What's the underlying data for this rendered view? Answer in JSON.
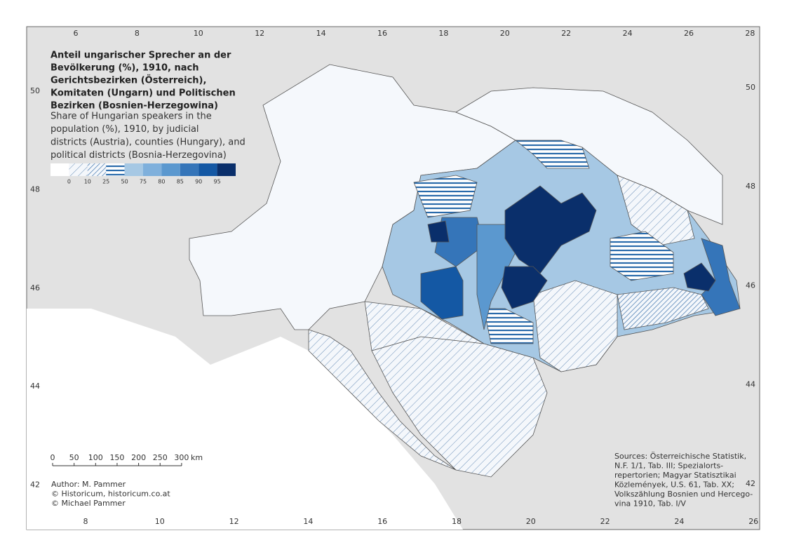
{
  "title_lines": [
    "Anteil ungarischer Sprecher an der",
    "Bevölkerung (%), 1910, nach",
    "Gerichtsbezirken (Österreich),",
    "Komitaten (Ungarn) und Politischen",
    "Bezirken (Bosnien-Herzegowina)"
  ],
  "subtitle_lines": [
    "Share of Hungarian speakers in the",
    "population (%), 1910, by judicial",
    "districts (Austria), counties (Hungary), and",
    "political districts (Bosnia-Herzegovina)"
  ],
  "legend": {
    "breaks": [
      0,
      10,
      25,
      50,
      75,
      80,
      85,
      90,
      95
    ]
  },
  "graticule": {
    "top": [
      6,
      8,
      10,
      12,
      14,
      16,
      18,
      20,
      22,
      24,
      26,
      28
    ],
    "bottom": [
      8,
      10,
      12,
      14,
      16,
      18,
      20,
      22,
      24,
      26
    ],
    "left": [
      50,
      48,
      46,
      44,
      42
    ],
    "right": [
      50,
      48,
      46,
      44,
      42
    ]
  },
  "scale_bar": {
    "ticks": [
      0,
      50,
      100,
      150,
      200,
      250,
      300
    ],
    "unit": "km"
  },
  "credits": [
    "Author: M. Pammer",
    "© Historicum, historicum.co.at",
    "© Michael Pammer"
  ],
  "sources_lines": [
    "Sources: Österreichische Statistik,",
    "N.F. 1/1, Tab. III; Spezialorts-",
    "repertorien; Magyar Statisztikai",
    "Közlemények, U.S. 61, Tab. XX;",
    "Volkszählung Bosnien und Hercego-",
    "vina 1910, Tab. I/V"
  ]
}
